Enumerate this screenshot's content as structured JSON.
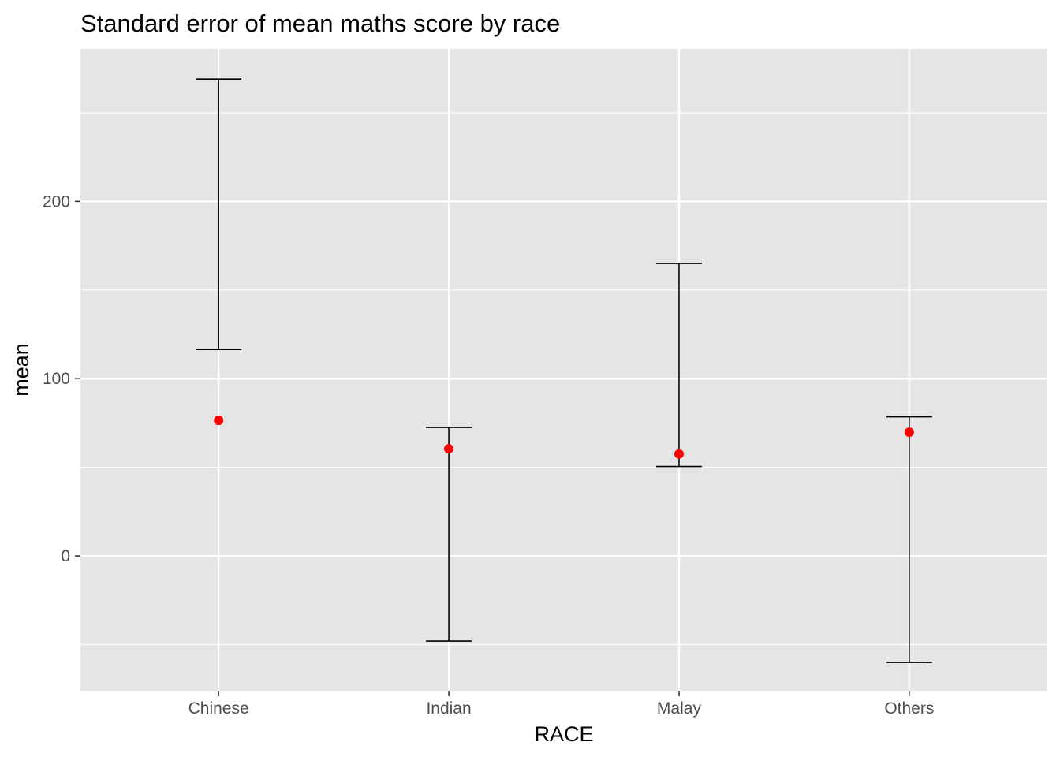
{
  "chart_data": {
    "type": "scatter",
    "title": "Standard error of mean maths score by race",
    "xlabel": "RACE",
    "ylabel": "mean",
    "categories": [
      "Chinese",
      "Indian",
      "Malay",
      "Others"
    ],
    "mean": [
      76.5,
      60.5,
      57.5,
      69.8
    ],
    "error_lower": [
      116.5,
      -48.0,
      50.5,
      -60.0
    ],
    "error_upper": [
      269.0,
      72.5,
      165.0,
      78.5
    ],
    "ylim": [
      -76,
      286
    ],
    "yticks": [
      0,
      100,
      200
    ],
    "grid": true,
    "colors": {
      "panel": "#e5e5e5",
      "grid": "#ffffff",
      "point": "#ff0000",
      "errorbar": "#000000",
      "tick": "#333333"
    }
  }
}
